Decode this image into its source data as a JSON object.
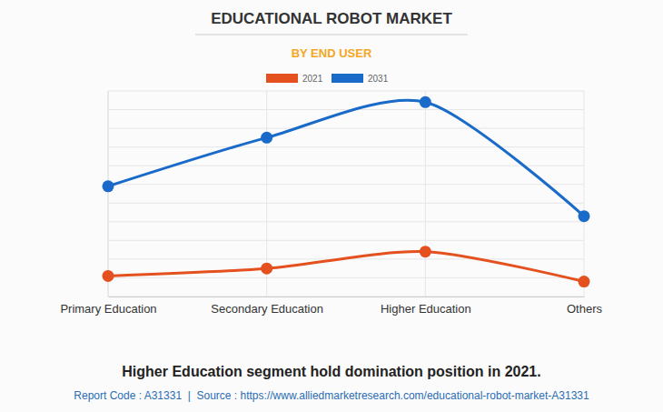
{
  "chart_data": {
    "type": "line",
    "title": "EDUCATIONAL ROBOT MARKET",
    "subtitle": "BY END USER",
    "categories": [
      "Primary Education",
      "Secondary Education",
      "Higher Education",
      "Others"
    ],
    "series": [
      {
        "name": "2021",
        "color": "#e4501e",
        "values": [
          11,
          15,
          24,
          8
        ]
      },
      {
        "name": "2031",
        "color": "#1a6ac9",
        "values": [
          59,
          85,
          104,
          43
        ]
      }
    ],
    "ylim": [
      0,
      110
    ],
    "yticks": [
      0,
      10,
      20,
      30,
      40,
      50,
      60,
      70,
      80,
      90,
      100,
      110
    ],
    "grid": true,
    "legend": "top",
    "tick_labels": "x",
    "marker": "circle",
    "line_style": "solid",
    "annotations": [
      "Higher Education segment hold domination position in 2021.",
      "Report Code : A31331  |  Source : https://www.alliedmarketresearch.com/educational-robot-market-A31331"
    ]
  }
}
